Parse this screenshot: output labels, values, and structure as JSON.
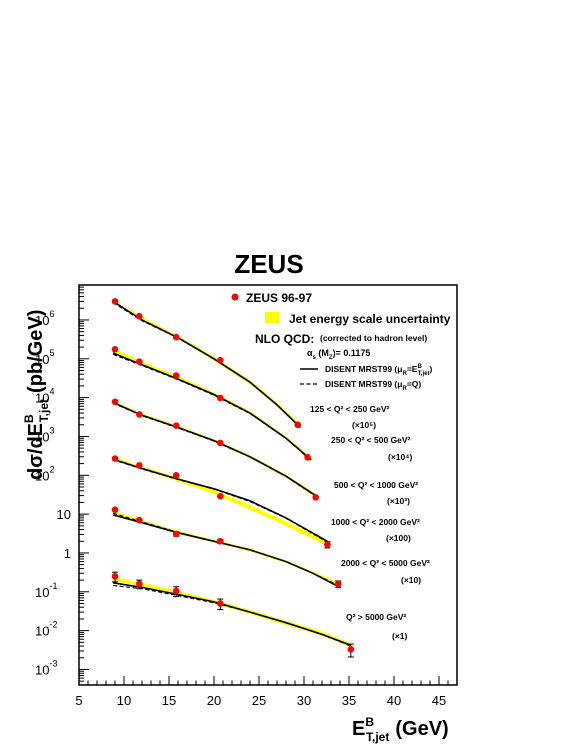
{
  "chart_data": {
    "type": "scatter",
    "title": "ZEUS",
    "xlabel": {
      "main": "E",
      "sup": "B",
      "sub": "T,jet",
      "unit": "(GeV)"
    },
    "ylabel": {
      "main": "dσ/dE",
      "sup": "B",
      "sub": "T,jet",
      "unit": "(pb/GeV)"
    },
    "xlim": [
      5,
      47
    ],
    "ylim_log10": [
      -3.4,
      6.9
    ],
    "y_scale": "log",
    "x_ticks": [
      "5",
      "10",
      "15",
      "20",
      "25",
      "30",
      "35",
      "40",
      "45"
    ],
    "y_tick_labels": [
      {
        "base": "10",
        "exp": "-3",
        "value": 0.001
      },
      {
        "base": "10",
        "exp": "-2",
        "value": 0.01
      },
      {
        "base": "10",
        "exp": "-1",
        "value": 0.1
      },
      {
        "base": "1",
        "exp": "",
        "value": 1
      },
      {
        "base": "10",
        "exp": "",
        "value": 10
      },
      {
        "base": "10",
        "exp": "2",
        "value": 100
      },
      {
        "base": "10",
        "exp": "3",
        "value": 1000
      },
      {
        "base": "10",
        "exp": "4",
        "value": 10000
      },
      {
        "base": "10",
        "exp": "5",
        "value": 100000
      },
      {
        "base": "10",
        "exp": "6",
        "value": 1000000
      }
    ],
    "legend": {
      "position": "top-right",
      "data_label": "ZEUS 96-97",
      "band_label": "Jet energy scale uncertainty",
      "nlo_label": "NLO QCD:",
      "corrected_label": "(corrected to hadron level)",
      "alpha_label": "α",
      "alpha_sub": "s",
      "alpha_rest": " (M",
      "alpha_msub": "Z",
      "alpha_value": ")= 0.1175",
      "solid_label": "DISENT MRST99 (μ",
      "solid_sub": "R",
      "solid_eq": "=E",
      "solid_sup": "B",
      "solid_sub2": "T,jet",
      "solid_close": ")",
      "dashed_label": "DISENT MRST99 (μ",
      "dashed_sub": "R",
      "dashed_eq": "=Q)"
    },
    "colors": {
      "data": "#ff0000",
      "band": "#ffff00",
      "line": "#000000"
    },
    "series": [
      {
        "label": "125 < Q² < 250 GeV²",
        "scale": "(×10⁵)",
        "points": [
          {
            "x": 9.0,
            "y": 3000000,
            "err": 0
          },
          {
            "x": 11.7,
            "y": 1250000,
            "err": 0
          },
          {
            "x": 15.8,
            "y": 360000,
            "err": 0
          },
          {
            "x": 20.7,
            "y": 92000,
            "err": 0
          },
          {
            "x": 29.3,
            "y": 2000,
            "err": 0
          }
        ],
        "theory_solid": [
          [
            8.8,
            3000000
          ],
          [
            12,
            1000000
          ],
          [
            16,
            350000
          ],
          [
            20,
            100000
          ],
          [
            24,
            25000
          ],
          [
            27,
            6500
          ],
          [
            29.6,
            1700
          ]
        ],
        "theory_dashed": [
          [
            8.8,
            2800000
          ],
          [
            12,
            950000
          ],
          [
            16,
            340000
          ],
          [
            20,
            98000
          ],
          [
            24,
            25000
          ],
          [
            27,
            6500
          ],
          [
            29.6,
            1700
          ]
        ],
        "band_low": [
          [
            8.8,
            3800000
          ],
          [
            12,
            1000000
          ],
          [
            16,
            330000
          ],
          [
            20,
            90000
          ],
          [
            24,
            22000
          ],
          [
            27,
            6000
          ],
          [
            29.6,
            1600
          ]
        ],
        "band_high": [
          [
            8.8,
            3500000
          ],
          [
            12,
            1200000
          ],
          [
            16,
            390000
          ],
          [
            20,
            115000
          ],
          [
            24,
            28000
          ],
          [
            27,
            7500
          ],
          [
            29.6,
            2100
          ]
        ]
      },
      {
        "label": "250 < Q² < 500 GeV²",
        "scale": "(×10⁴)",
        "points": [
          {
            "x": 9.0,
            "y": 175000,
            "err": 0
          },
          {
            "x": 11.7,
            "y": 84000,
            "err": 0
          },
          {
            "x": 15.8,
            "y": 37000,
            "err": 0
          },
          {
            "x": 20.7,
            "y": 9800,
            "err": 0
          },
          {
            "x": 30.4,
            "y": 290,
            "err": 0
          }
        ],
        "theory_solid": [
          [
            8.8,
            140000
          ],
          [
            12,
            70000
          ],
          [
            16,
            30000
          ],
          [
            20,
            12000
          ],
          [
            24,
            4000
          ],
          [
            28,
            900
          ],
          [
            30.8,
            250
          ]
        ],
        "theory_dashed": [
          [
            8.8,
            130000
          ],
          [
            12,
            67000
          ],
          [
            16,
            29000
          ],
          [
            20,
            11500
          ],
          [
            24,
            3900
          ],
          [
            28,
            880
          ],
          [
            30.8,
            240
          ]
        ],
        "band_low": [
          [
            8.8,
            150000
          ],
          [
            12,
            72000
          ],
          [
            16,
            30000
          ],
          [
            20,
            11000
          ],
          [
            24,
            3700
          ],
          [
            28,
            850
          ],
          [
            30.8,
            230
          ]
        ],
        "band_high": [
          [
            8.8,
            185000
          ],
          [
            12,
            86000
          ],
          [
            16,
            36000
          ],
          [
            20,
            13500
          ],
          [
            24,
            4500
          ],
          [
            28,
            1000
          ],
          [
            30.8,
            290
          ]
        ]
      },
      {
        "label": "500 < Q² < 1000 GeV²",
        "scale": "(×10³)",
        "points": [
          {
            "x": 9.0,
            "y": 7800,
            "err": 0
          },
          {
            "x": 11.7,
            "y": 3700,
            "err": 0
          },
          {
            "x": 15.8,
            "y": 1900,
            "err": 0
          },
          {
            "x": 20.7,
            "y": 680,
            "err": 0
          },
          {
            "x": 31.3,
            "y": 27,
            "err": 0
          }
        ],
        "theory_solid": [
          [
            8.8,
            7500
          ],
          [
            12,
            3500
          ],
          [
            16,
            1700
          ],
          [
            20,
            780
          ],
          [
            24,
            300
          ],
          [
            28,
            95
          ],
          [
            31.5,
            28
          ]
        ],
        "theory_dashed": [
          [
            8.8,
            7200
          ],
          [
            12,
            3400
          ],
          [
            16,
            1650
          ],
          [
            20,
            760
          ],
          [
            24,
            295
          ],
          [
            28,
            93
          ],
          [
            31.5,
            27
          ]
        ],
        "band_low": [
          [
            8.8,
            7000
          ],
          [
            12,
            3300
          ],
          [
            16,
            1600
          ],
          [
            20,
            720
          ],
          [
            24,
            280
          ],
          [
            28,
            88
          ],
          [
            31.5,
            25
          ]
        ],
        "band_high": [
          [
            8.8,
            8500
          ],
          [
            12,
            3900
          ],
          [
            16,
            1900
          ],
          [
            20,
            850
          ],
          [
            24,
            330
          ],
          [
            28,
            105
          ],
          [
            31.5,
            31
          ]
        ]
      },
      {
        "label": "1000 < Q² < 2000 GeV²",
        "scale": "(×100)",
        "points": [
          {
            "x": 9.0,
            "y": 270,
            "err": 0
          },
          {
            "x": 11.7,
            "y": 180,
            "err": 0
          },
          {
            "x": 15.8,
            "y": 100,
            "err": 0
          },
          {
            "x": 20.7,
            "y": 29,
            "err": 0
          },
          {
            "x": 32.6,
            "y": 1.65,
            "err": 0.3
          }
        ],
        "theory_solid": [
          [
            8.8,
            260
          ],
          [
            12,
            150
          ],
          [
            16,
            80
          ],
          [
            20,
            45
          ],
          [
            24,
            22
          ],
          [
            28,
            8
          ],
          [
            32.6,
            2.0
          ]
        ],
        "theory_dashed": [
          [
            8.8,
            250
          ],
          [
            12,
            145
          ],
          [
            16,
            78
          ],
          [
            20,
            44
          ],
          [
            24,
            21
          ],
          [
            28,
            7.8
          ],
          [
            32.6,
            1.9
          ]
        ],
        "band_low": [
          [
            8.8,
            250
          ],
          [
            12,
            140
          ],
          [
            16,
            70
          ],
          [
            20,
            33
          ],
          [
            24,
            13
          ],
          [
            28,
            5
          ],
          [
            32.6,
            1.5
          ]
        ],
        "band_high": [
          [
            8.8,
            300
          ],
          [
            12,
            170
          ],
          [
            16,
            88
          ],
          [
            20,
            42
          ],
          [
            24,
            17
          ],
          [
            28,
            6.5
          ],
          [
            32.6,
            2.0
          ]
        ]
      },
      {
        "label": "2000 < Q² < 5000 GeV²",
        "scale": "(×10)",
        "points": [
          {
            "x": 9.0,
            "y": 13,
            "err": 0
          },
          {
            "x": 11.7,
            "y": 7.0,
            "err": 0
          },
          {
            "x": 15.8,
            "y": 3.1,
            "err": 0.4
          },
          {
            "x": 20.7,
            "y": 2.0,
            "err": 0.25
          },
          {
            "x": 33.8,
            "y": 0.16,
            "err": 0.03
          }
        ],
        "theory_solid": [
          [
            8.8,
            9.5
          ],
          [
            12,
            6
          ],
          [
            16,
            3.3
          ],
          [
            20,
            2.0
          ],
          [
            24,
            1.2
          ],
          [
            28,
            0.6
          ],
          [
            31,
            0.3
          ],
          [
            34,
            0.13
          ]
        ],
        "theory_dashed": [
          [
            8.8,
            10.5
          ],
          [
            12,
            6.3
          ],
          [
            16,
            3.4
          ],
          [
            20,
            2.0
          ],
          [
            24,
            1.2
          ],
          [
            28,
            0.6
          ],
          [
            31,
            0.3
          ],
          [
            34,
            0.14
          ]
        ],
        "band_low": [
          [
            8.8,
            10
          ],
          [
            12,
            6
          ],
          [
            16,
            3.2
          ],
          [
            20,
            1.9
          ],
          [
            24,
            1.1
          ],
          [
            28,
            0.55
          ],
          [
            31,
            0.28
          ],
          [
            34,
            0.14
          ]
        ],
        "band_high": [
          [
            8.8,
            12
          ],
          [
            12,
            7
          ],
          [
            16,
            3.7
          ],
          [
            20,
            2.2
          ],
          [
            24,
            1.3
          ],
          [
            28,
            0.65
          ],
          [
            31,
            0.33
          ],
          [
            34,
            0.17
          ]
        ]
      },
      {
        "label": "Q² > 5000 GeV²",
        "scale": "(×1)",
        "points": [
          {
            "x": 9.0,
            "y": 0.25,
            "err": 0.07
          },
          {
            "x": 11.7,
            "y": 0.16,
            "err": 0.04
          },
          {
            "x": 15.8,
            "y": 0.105,
            "err": 0.03
          },
          {
            "x": 20.7,
            "y": 0.05,
            "err": 0.015
          },
          {
            "x": 35.2,
            "y": 0.0033,
            "err": 0.0012
          }
        ],
        "theory_solid": [
          [
            8.8,
            0.17
          ],
          [
            12,
            0.13
          ],
          [
            16,
            0.085
          ],
          [
            20,
            0.055
          ],
          [
            24,
            0.03
          ],
          [
            28,
            0.016
          ],
          [
            32,
            0.008
          ],
          [
            35.2,
            0.0042
          ]
        ],
        "theory_dashed": [
          [
            8.8,
            0.145
          ],
          [
            12,
            0.12
          ],
          [
            16,
            0.08
          ],
          [
            20,
            0.052
          ],
          [
            24,
            0.03
          ],
          [
            28,
            0.016
          ],
          [
            32,
            0.008
          ],
          [
            35.2,
            0.004
          ]
        ],
        "band_low": [
          [
            8.8,
            0.19
          ],
          [
            12,
            0.14
          ],
          [
            16,
            0.085
          ],
          [
            20,
            0.05
          ],
          [
            24,
            0.027
          ],
          [
            28,
            0.014
          ],
          [
            32,
            0.0075
          ],
          [
            35.2,
            0.0038
          ]
        ],
        "band_high": [
          [
            8.8,
            0.24
          ],
          [
            12,
            0.17
          ],
          [
            16,
            0.105
          ],
          [
            20,
            0.062
          ],
          [
            24,
            0.034
          ],
          [
            28,
            0.018
          ],
          [
            32,
            0.0095
          ],
          [
            35.2,
            0.0048
          ]
        ]
      }
    ]
  }
}
